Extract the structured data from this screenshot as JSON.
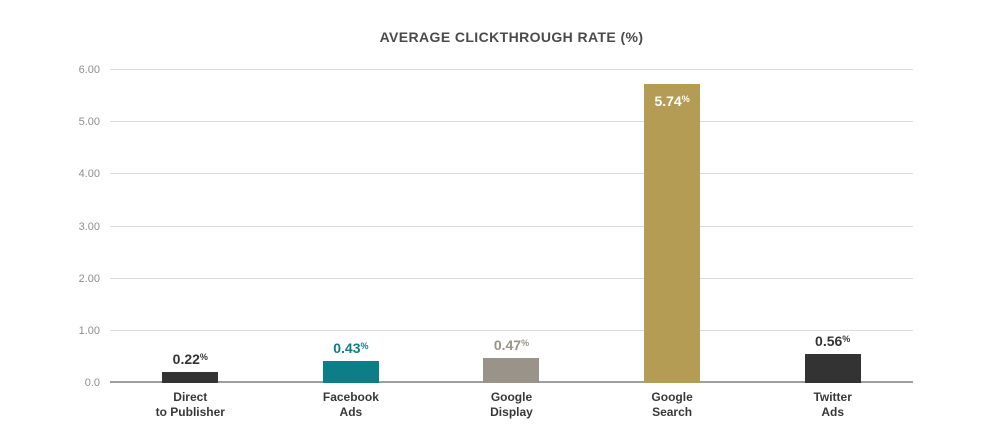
{
  "chart_data": {
    "type": "bar",
    "title": "AVERAGE CLICKTHROUGH RATE (%)",
    "categories": [
      [
        "Direct",
        "to Publisher"
      ],
      [
        "Facebook",
        "Ads"
      ],
      [
        "Google",
        "Display"
      ],
      [
        "Google",
        "Search"
      ],
      [
        "Twitter",
        "Ads"
      ]
    ],
    "values": [
      0.22,
      0.43,
      0.47,
      5.74,
      0.56
    ],
    "value_labels": [
      "0.22",
      "0.43",
      "0.47",
      "5.74",
      "0.56"
    ],
    "value_suffix": "%",
    "bar_colors": [
      "#333333",
      "#0d7e88",
      "#99938a",
      "#b59c54",
      "#333333"
    ],
    "value_label_colors": [
      "#333333",
      "#0d7e88",
      "#99938a",
      "#ffffff",
      "#333333"
    ],
    "value_label_positions": [
      "above",
      "above",
      "above",
      "inside",
      "above"
    ],
    "ylim": [
      0,
      6
    ],
    "yticks": [
      {
        "value": 6,
        "label": "6.00"
      },
      {
        "value": 5,
        "label": "5.00"
      },
      {
        "value": 4,
        "label": "4.00"
      },
      {
        "value": 3,
        "label": "3.00"
      },
      {
        "value": 2,
        "label": "2.00"
      },
      {
        "value": 1,
        "label": "1.00"
      },
      {
        "value": 0,
        "label": "0.0"
      }
    ],
    "xlabel": "",
    "ylabel": "",
    "grid": true,
    "legend": false,
    "colors": {
      "background": "#ffffff",
      "gridline": "#dcdcdc",
      "baseline": "#9e9e9e",
      "title_text": "#4a4a4a",
      "tick_text": "#8e8e8e",
      "category_text": "#383838"
    }
  }
}
